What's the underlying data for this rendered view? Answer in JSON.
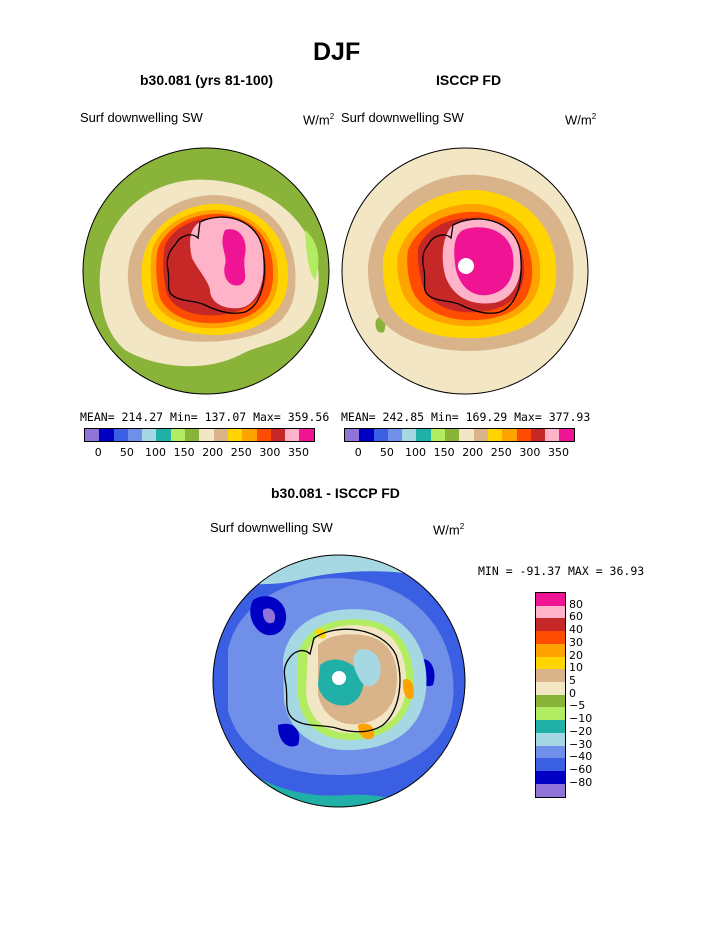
{
  "title": "DJF",
  "panels": [
    {
      "subtitle": "b30.081 (yrs 81-100)",
      "left_label": "Surf downwelling SW",
      "unit": "W/m",
      "unit_sup": "2",
      "stats": "MEAN= 214.27  Min= 137.07  Max= 359.56"
    },
    {
      "subtitle": "ISCCP FD",
      "left_label": "Surf downwelling SW",
      "unit": "W/m",
      "unit_sup": "2",
      "stats": "MEAN= 242.85  Min= 169.29  Max= 377.93"
    }
  ],
  "colorbar": {
    "colors": [
      "#8f73d6",
      "#0000c4",
      "#3b5fe2",
      "#6f8fe8",
      "#a6d8e4",
      "#20b0a8",
      "#b2ec60",
      "#8ab33a",
      "#f3e6c4",
      "#d9b48a",
      "#ffd400",
      "#ffa300",
      "#ff4c00",
      "#c62828",
      "#ffb3c8",
      "#ee1493"
    ],
    "labels": [
      "0",
      "50",
      "100",
      "150",
      "200",
      "250",
      "300",
      "350"
    ]
  },
  "diff": {
    "subtitle": "b30.081 - ISCCP FD",
    "left_label": "Surf downwelling SW",
    "unit": "W/m",
    "unit_sup": "2",
    "minmax": "MIN = -91.37 MAX =  36.93",
    "colors": [
      "#ee1493",
      "#ffb3c8",
      "#c62828",
      "#ff4c00",
      "#ffa300",
      "#ffd400",
      "#d9b48a",
      "#f3e6c4",
      "#8ab33a",
      "#b2ec60",
      "#20b0a8",
      "#a6d8e4",
      "#6f8fe8",
      "#3b5fe2",
      "#0000c4",
      "#8f73d6"
    ],
    "labels": [
      "80",
      "60",
      "40",
      "30",
      "20",
      "10",
      "5",
      "0",
      "−5",
      "−10",
      "−20",
      "−30",
      "−40",
      "−60",
      "−80"
    ]
  },
  "map_colors": {
    "ocean_green": "#8ab33a",
    "tan": "#d9b48a",
    "cream": "#f3e6c4",
    "yellow": "#ffd400",
    "orange": "#ffa300",
    "red": "#ff4c00",
    "darkred": "#c62828",
    "pink": "#ffb3c8",
    "magenta": "#ee1493",
    "lightgreen": "#b2ec60",
    "teal": "#20b0a8",
    "lightblue": "#a6d8e4",
    "medblue": "#6f8fe8",
    "blue": "#3b5fe2",
    "navy": "#0000c4",
    "purple": "#8f73d6"
  }
}
